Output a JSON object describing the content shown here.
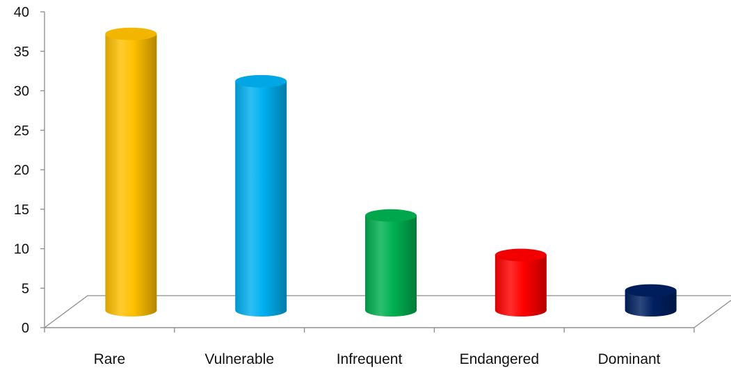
{
  "chart_data": {
    "type": "bar",
    "categories": [
      "Rare",
      "Vulnerable",
      "Infrequent",
      "Endangered",
      "Dominant"
    ],
    "values": [
      36.5,
      30.5,
      13.5,
      8.5,
      4
    ],
    "ylim": [
      0,
      40
    ],
    "yticks": [
      0,
      5,
      10,
      15,
      20,
      25,
      30,
      35,
      40
    ],
    "grid": false,
    "legend": "none",
    "colors": [
      "#FFC000",
      "#00B0F0",
      "#00B050",
      "#FF0000",
      "#002060"
    ]
  }
}
